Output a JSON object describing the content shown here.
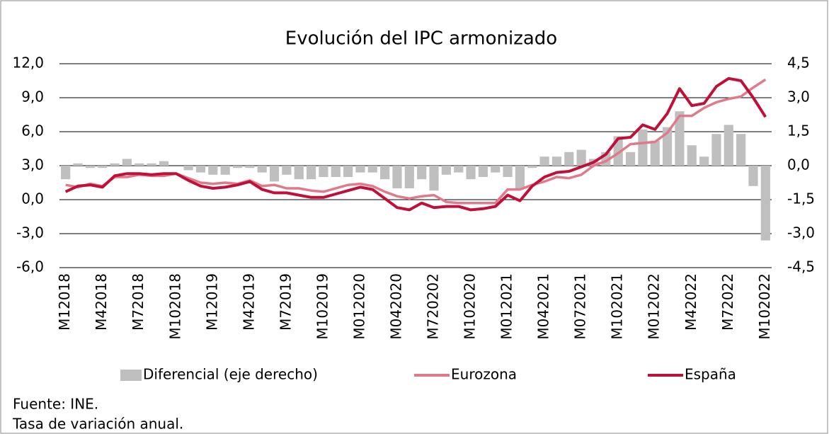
{
  "chart_data": {
    "type": "bar_line",
    "title": "Evolución del IPC armonizado",
    "notes": [
      "Fuente: INE.",
      "Tasa de variación anual."
    ],
    "categories": [
      "M12018",
      null,
      null,
      "M42018",
      null,
      null,
      "M72018",
      null,
      null,
      "M102018",
      null,
      null,
      "M12019",
      null,
      null,
      "M42019",
      null,
      null,
      "M72019",
      null,
      null,
      "M102019",
      null,
      null,
      "M012020",
      null,
      null,
      "M042020",
      null,
      null,
      "M720202",
      null,
      null,
      "M102020",
      null,
      null,
      "M012021",
      null,
      null,
      "M042021",
      null,
      null,
      "M072021",
      null,
      null,
      "M102021",
      null,
      null,
      "M012022",
      null,
      null,
      "M42022",
      null,
      null,
      "M72022",
      null,
      null,
      "M102022"
    ],
    "series": [
      {
        "name": "Diferencial (eje derecho)",
        "kind": "bar",
        "axis": "y2",
        "color": "#bfbfbf",
        "values": [
          -0.6,
          0.1,
          -0.1,
          -0.1,
          0.1,
          0.3,
          0.1,
          0.1,
          0.2,
          0.0,
          -0.2,
          -0.3,
          -0.4,
          -0.4,
          -0.1,
          -0.1,
          -0.3,
          -0.7,
          -0.4,
          -0.6,
          -0.6,
          -0.5,
          -0.5,
          -0.5,
          -0.3,
          -0.3,
          -0.6,
          -1.0,
          -1.0,
          -0.6,
          -1.1,
          -0.4,
          -0.3,
          -0.6,
          -0.5,
          -0.3,
          -0.5,
          -1.0,
          -0.1,
          0.4,
          0.4,
          0.6,
          0.7,
          0.3,
          0.6,
          1.3,
          0.6,
          1.6,
          1.1,
          1.7,
          2.4,
          0.9,
          0.4,
          1.4,
          1.8,
          1.4,
          -0.9,
          -3.3
        ]
      },
      {
        "name": "Eurozona",
        "kind": "line",
        "color": "#e07a8a",
        "values": [
          1.3,
          1.1,
          1.4,
          1.2,
          2.0,
          2.0,
          2.2,
          2.1,
          2.1,
          2.3,
          1.9,
          1.5,
          1.4,
          1.5,
          1.4,
          1.7,
          1.2,
          1.3,
          1.0,
          1.0,
          0.8,
          0.7,
          1.0,
          1.3,
          1.4,
          1.2,
          0.7,
          0.3,
          0.1,
          0.3,
          0.4,
          -0.2,
          -0.3,
          -0.3,
          -0.3,
          -0.3,
          0.9,
          0.9,
          1.3,
          1.6,
          2.0,
          1.9,
          2.2,
          3.0,
          3.4,
          4.1,
          4.9,
          5.0,
          5.1,
          5.9,
          7.4,
          7.4,
          8.1,
          8.6,
          8.9,
          9.1,
          9.9,
          10.6
        ]
      },
      {
        "name": "España",
        "kind": "line",
        "color": "#c0103a",
        "values": [
          0.7,
          1.2,
          1.3,
          1.1,
          2.1,
          2.3,
          2.3,
          2.2,
          2.3,
          2.3,
          1.7,
          1.2,
          1.0,
          1.1,
          1.3,
          1.6,
          0.9,
          0.6,
          0.6,
          0.4,
          0.2,
          0.2,
          0.5,
          0.8,
          1.1,
          0.9,
          0.1,
          -0.7,
          -0.9,
          -0.3,
          -0.7,
          -0.6,
          -0.6,
          -0.9,
          -0.8,
          -0.6,
          0.4,
          -0.1,
          1.2,
          2.0,
          2.4,
          2.5,
          2.9,
          3.3,
          4.0,
          5.4,
          5.5,
          6.6,
          6.2,
          7.6,
          9.8,
          8.3,
          8.5,
          10.0,
          10.7,
          10.5,
          9.0,
          7.3
        ]
      }
    ],
    "ylim": [
      -6,
      12
    ],
    "yticks": [
      {
        "value": -6,
        "label": "-6,0"
      },
      {
        "value": -3,
        "label": "-3,0"
      },
      {
        "value": 0,
        "label": "0,0"
      },
      {
        "value": 3,
        "label": "3,0"
      },
      {
        "value": 6,
        "label": "6,0"
      },
      {
        "value": 9,
        "label": "9,0"
      },
      {
        "value": 12,
        "label": "12,0"
      }
    ],
    "y2lim": [
      -4.5,
      4.5
    ],
    "y2ticks": [
      {
        "value": -4.5,
        "label": "-4,5"
      },
      {
        "value": -3,
        "label": "-3,0"
      },
      {
        "value": -1.5,
        "label": "-1,5"
      },
      {
        "value": 0,
        "label": "0,0"
      },
      {
        "value": 1.5,
        "label": "1,5"
      },
      {
        "value": 3,
        "label": "3,0"
      },
      {
        "value": 4.5,
        "label": "4,5"
      }
    ],
    "grid": true,
    "legend": "bottom"
  }
}
